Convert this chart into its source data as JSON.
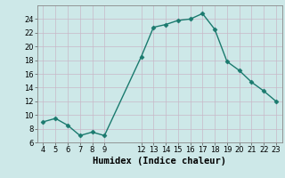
{
  "x": [
    4,
    5,
    6,
    7,
    8,
    9,
    12,
    13,
    14,
    15,
    16,
    17,
    18,
    19,
    20,
    21,
    22,
    23
  ],
  "y": [
    9,
    9.5,
    8.5,
    7,
    7.5,
    7,
    18.5,
    22.8,
    23.2,
    23.8,
    24.0,
    24.8,
    22.5,
    17.8,
    16.5,
    14.8,
    13.5,
    12.0
  ],
  "line_color": "#1a7a6e",
  "bg_color": "#cde8e8",
  "grid_color": "#b8d4d4",
  "xlabel": "Humidex (Indice chaleur)",
  "xlim": [
    3.5,
    23.5
  ],
  "ylim": [
    6,
    26
  ],
  "yticks": [
    6,
    8,
    10,
    12,
    14,
    16,
    18,
    20,
    22,
    24
  ],
  "xticks": [
    4,
    5,
    6,
    7,
    8,
    9,
    12,
    13,
    14,
    15,
    16,
    17,
    18,
    19,
    20,
    21,
    22,
    23
  ],
  "marker": "D",
  "marker_size": 2.5,
  "linewidth": 1.0,
  "xlabel_fontsize": 7.5,
  "tick_fontsize": 6.0
}
